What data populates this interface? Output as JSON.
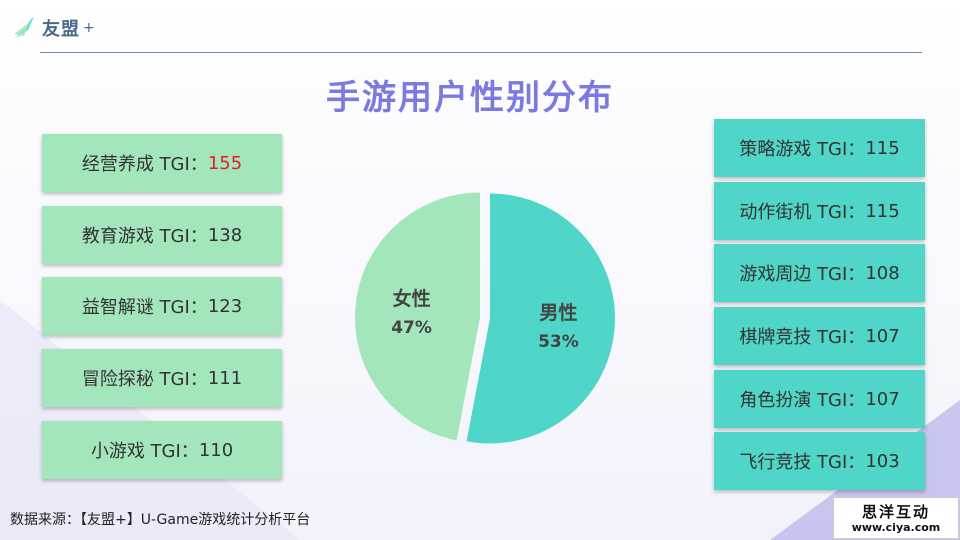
{
  "brand": {
    "name": "友盟",
    "plus": "+"
  },
  "title": "手游用户性别分布",
  "chart_data": {
    "type": "pie",
    "slices": [
      {
        "label": "男性",
        "value": 53,
        "display": "53%",
        "color": "#4fd6c8"
      },
      {
        "label": "女性",
        "value": 47,
        "display": "47%",
        "color": "#a3e6bc"
      }
    ]
  },
  "tgi_left": [
    {
      "name": "经营养成 TGI：",
      "value": "155",
      "highlight": true
    },
    {
      "name": "教育游戏 TGI：",
      "value": "138",
      "highlight": false
    },
    {
      "name": "益智解谜 TGI：",
      "value": "123",
      "highlight": false
    },
    {
      "name": "冒险探秘 TGI：",
      "value": "111",
      "highlight": false
    },
    {
      "name": "小游戏 TGI：",
      "value": "110",
      "highlight": false
    }
  ],
  "tgi_right": [
    {
      "name": "策略游戏 TGI：",
      "value": "115"
    },
    {
      "name": "动作街机 TGI：",
      "value": "115"
    },
    {
      "name": "游戏周边 TGI：",
      "value": "108"
    },
    {
      "name": "棋牌竞技 TGI：",
      "value": "107"
    },
    {
      "name": "角色扮演 TGI：",
      "value": "107"
    },
    {
      "name": "飞行竞技 TGI：",
      "value": "103"
    }
  ],
  "source": "数据来源：【友盟+】U-Game游戏统计分析平台",
  "watermark": {
    "top": "思洋互动",
    "bottom": "www.ciya.com"
  }
}
